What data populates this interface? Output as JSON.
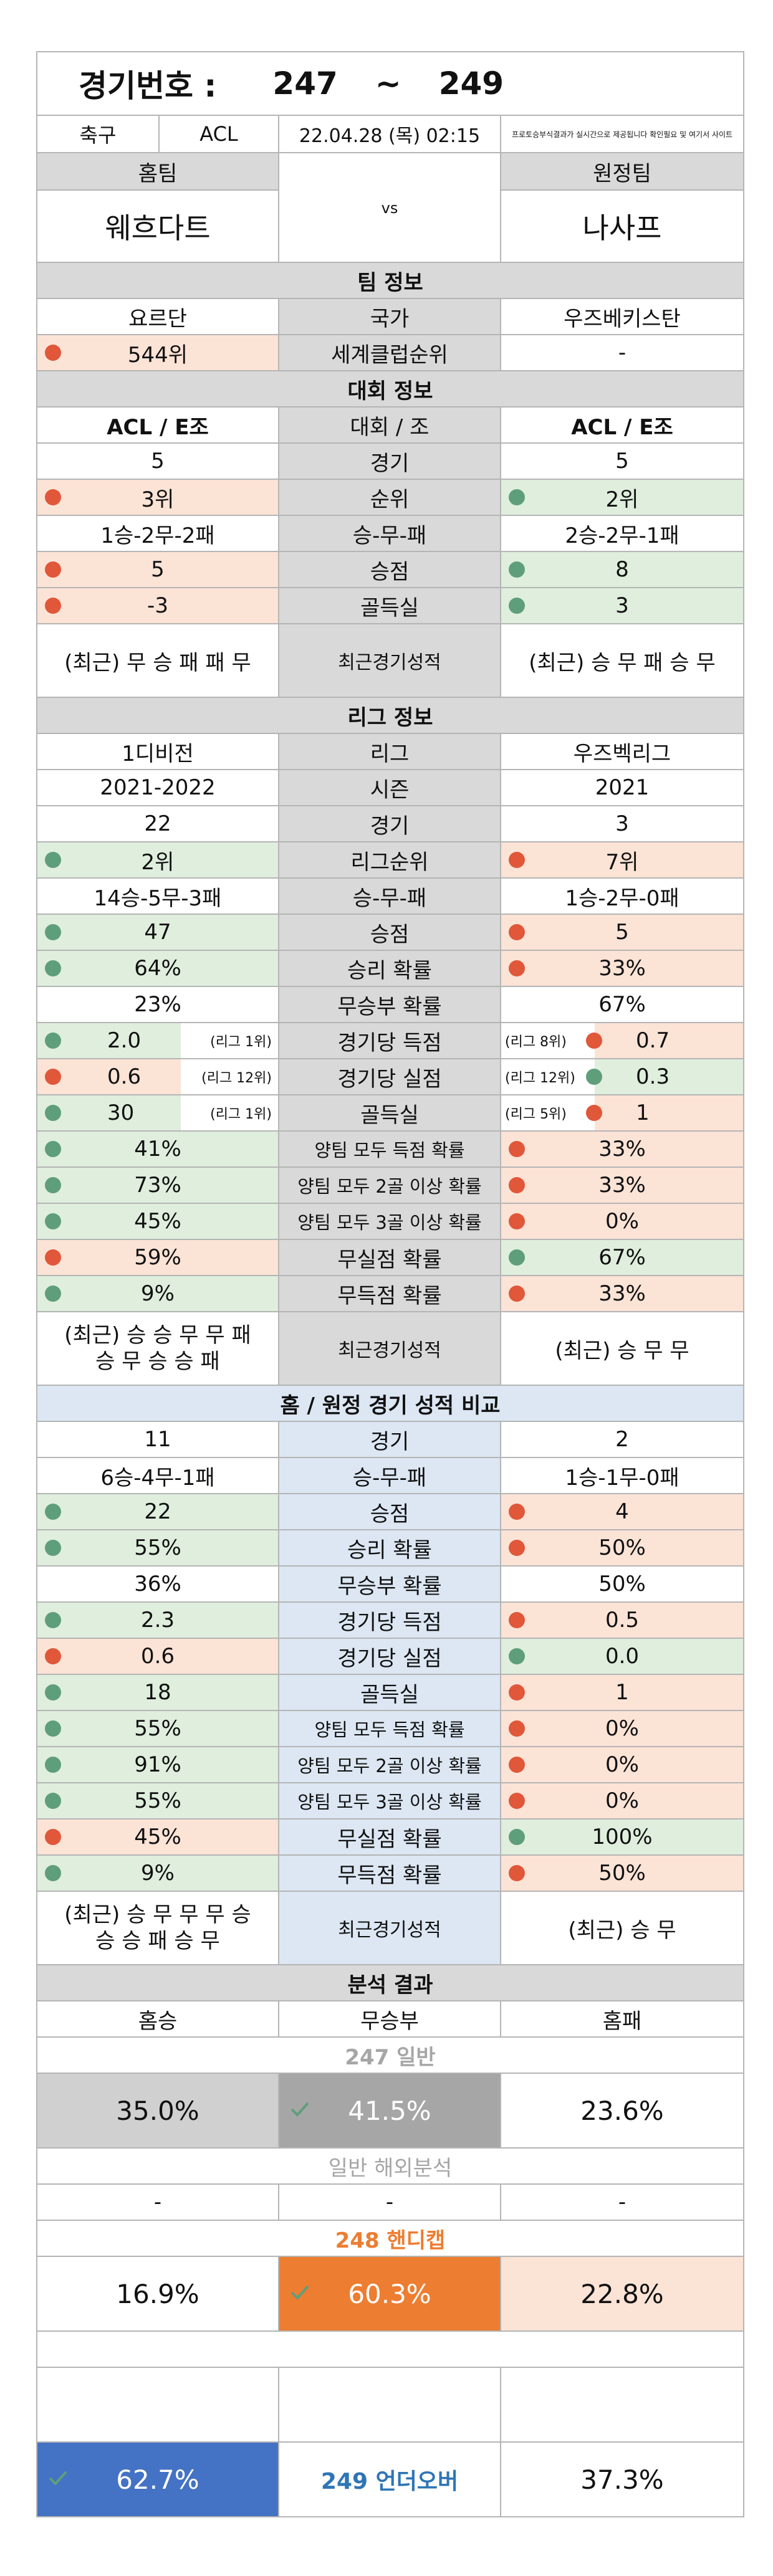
{
  "header": {
    "label": "경기번호 :",
    "from": "247",
    "sep": "~",
    "to": "249"
  },
  "match": {
    "sport": "축구",
    "league": "ACL",
    "datetime": "22.04.28 (목) 02:15",
    "notice": "프로토승부식결과가 실시간으로 제공됩니다 확인필요 및 여기서 사이트"
  },
  "teams": {
    "home_label": "홈팀",
    "away_label": "원정팀",
    "home": "웨흐다트",
    "vs": "vs",
    "away": "나사프"
  },
  "team_info": {
    "title": "팀 정보",
    "home_country": "요르단",
    "country_label": "국가",
    "away_country": "우즈베키스탄",
    "home_rank": "544위",
    "rank_label": "세계클럽순위",
    "away_rank": "-"
  },
  "tourn": {
    "title": "대회 정보",
    "home_group": "ACL / E조",
    "group_label": "대회 / 조",
    "away_group": "ACL / E조",
    "rows": [
      {
        "h": "5",
        "label": "경기",
        "a": "5",
        "hc": "",
        "ac": ""
      },
      {
        "h": "3위",
        "label": "순위",
        "a": "2위",
        "hc": "red",
        "ac": "grn"
      },
      {
        "h": "1승-2무-2패",
        "label": "승-무-패",
        "a": "2승-2무-1패",
        "hc": "",
        "ac": ""
      },
      {
        "h": "5",
        "label": "승점",
        "a": "8",
        "hc": "red",
        "ac": "grn"
      },
      {
        "h": "-3",
        "label": "골득실",
        "a": "3",
        "hc": "red",
        "ac": "grn"
      }
    ],
    "recent_h": "(최근) 무 승 패 패 무",
    "recent_label": "최근경기성적",
    "recent_a": "(최근) 승 무 패 승 무"
  },
  "league": {
    "title": "리그 정보",
    "rows": [
      {
        "h": "1디비전",
        "label": "리그",
        "a": "우즈벡리그",
        "hc": "",
        "ac": ""
      },
      {
        "h": "2021-2022",
        "label": "시즌",
        "a": "2021",
        "hc": "",
        "ac": ""
      },
      {
        "h": "22",
        "label": "경기",
        "a": "3",
        "hc": "",
        "ac": ""
      },
      {
        "h": "2위",
        "label": "리그순위",
        "a": "7위",
        "hc": "grn",
        "ac": "red"
      },
      {
        "h": "14승-5무-3패",
        "label": "승-무-패",
        "a": "1승-2무-0패",
        "hc": "",
        "ac": ""
      },
      {
        "h": "47",
        "label": "승점",
        "a": "5",
        "hc": "grn",
        "ac": "red"
      },
      {
        "h": "64%",
        "label": "승리 확률",
        "a": "33%",
        "hc": "grn",
        "ac": "red"
      },
      {
        "h": "23%",
        "label": "무승부 확률",
        "a": "67%",
        "hc": "",
        "ac": ""
      }
    ],
    "rank_rows": [
      {
        "h": "2.0",
        "hr": "(리그 1위)",
        "label": "경기당 득점",
        "ar": "(리그 8위)",
        "a": "0.7",
        "hc": "grn",
        "ac": "red"
      },
      {
        "h": "0.6",
        "hr": "(리그 12위)",
        "label": "경기당 실점",
        "ar": "(리그 12위)",
        "a": "0.3",
        "hc": "red",
        "ac": "grn"
      },
      {
        "h": "30",
        "hr": "(리그 1위)",
        "label": "골득실",
        "ar": "(리그 5위)",
        "a": "1",
        "hc": "grn",
        "ac": "red"
      }
    ],
    "rows2": [
      {
        "h": "41%",
        "label": "양팀 모두 득점 확률",
        "a": "33%",
        "hc": "grn",
        "ac": "red"
      },
      {
        "h": "73%",
        "label": "양팀 모두 2골 이상 확률",
        "a": "33%",
        "hc": "grn",
        "ac": "red"
      },
      {
        "h": "45%",
        "label": "양팀 모두 3골 이상 확률",
        "a": "0%",
        "hc": "grn",
        "ac": "red"
      },
      {
        "h": "59%",
        "label": "무실점 확률",
        "a": "67%",
        "hc": "red",
        "ac": "grn"
      },
      {
        "h": "9%",
        "label": "무득점 확률",
        "a": "33%",
        "hc": "grn",
        "ac": "red"
      }
    ],
    "recent_h1": "(최근) 승 승 무 무 패",
    "recent_h2": "승 무 승 승 패",
    "recent_label": "최근경기성적",
    "recent_a": "(최근) 승 무 무"
  },
  "homeaway": {
    "title": "홈 / 원정 경기 성적 비교",
    "rows": [
      {
        "h": "11",
        "label": "경기",
        "a": "2",
        "hc": "",
        "ac": ""
      },
      {
        "h": "6승-4무-1패",
        "label": "승-무-패",
        "a": "1승-1무-0패",
        "hc": "",
        "ac": ""
      },
      {
        "h": "22",
        "label": "승점",
        "a": "4",
        "hc": "grn",
        "ac": "red"
      },
      {
        "h": "55%",
        "label": "승리 확률",
        "a": "50%",
        "hc": "grn",
        "ac": "red"
      },
      {
        "h": "36%",
        "label": "무승부 확률",
        "a": "50%",
        "hc": "",
        "ac": ""
      },
      {
        "h": "2.3",
        "label": "경기당 득점",
        "a": "0.5",
        "hc": "grn",
        "ac": "red"
      },
      {
        "h": "0.6",
        "label": "경기당 실점",
        "a": "0.0",
        "hc": "red",
        "ac": "grn"
      },
      {
        "h": "18",
        "label": "골득실",
        "a": "1",
        "hc": "grn",
        "ac": "red"
      },
      {
        "h": "55%",
        "label": "양팀 모두 득점 확률",
        "a": "0%",
        "hc": "grn",
        "ac": "red"
      },
      {
        "h": "91%",
        "label": "양팀 모두 2골 이상 확률",
        "a": "0%",
        "hc": "grn",
        "ac": "red"
      },
      {
        "h": "55%",
        "label": "양팀 모두 3골 이상 확률",
        "a": "0%",
        "hc": "grn",
        "ac": "red"
      },
      {
        "h": "45%",
        "label": "무실점 확률",
        "a": "100%",
        "hc": "red",
        "ac": "grn"
      },
      {
        "h": "9%",
        "label": "무득점 확률",
        "a": "50%",
        "hc": "grn",
        "ac": "red"
      }
    ],
    "recent_h1": "(최근) 승 무 무 무 승",
    "recent_h2": "승 승 패 승 무",
    "recent_label": "최근경기성적",
    "recent_a": "(최근) 승 무"
  },
  "analysis": {
    "title": "분석 결과",
    "home_win": "홈승",
    "draw": "무승부",
    "home_loss": "홈패",
    "g247_label": "247 일반",
    "g247": [
      "35.0%",
      "41.5%",
      "23.6%"
    ],
    "overseas_label": "일반 해외분석",
    "overseas": [
      "-",
      "-",
      "-"
    ],
    "g248_label": "248 핸디캡",
    "g248": [
      "16.9%",
      "60.3%",
      "22.8%"
    ],
    "g249_label": "249 언더오버",
    "g249": [
      "62.7%",
      "37.3%"
    ]
  },
  "colors": {
    "red": "#e0573a",
    "green": "#5f9e7b",
    "orange": "#ed7d31",
    "blue": "#4472c4",
    "label_blue": "#2e75b6"
  }
}
